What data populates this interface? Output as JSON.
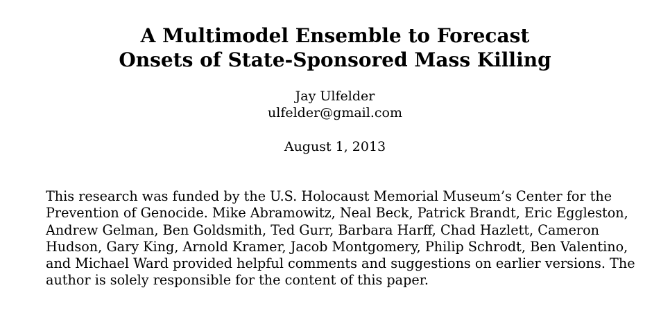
{
  "paper": {
    "title_lines": [
      "A Multimodel Ensemble to Forecast",
      "Onsets of State-Sponsored Mass Killing"
    ],
    "author": "Jay Ulfelder",
    "email": "ulfelder@gmail.com",
    "date": "August 1, 2013",
    "acknowledgment_lines": [
      "This research was funded by the U.S. Holocaust Memorial Museum’s Center for the",
      "Prevention of Genocide. Mike Abramowitz, Neal Beck, Patrick Brandt, Eric Eggleston,",
      "Andrew Gelman, Ben Goldsmith, Ted Gurr, Barbara Harff, Chad Hazlett, Cameron",
      "Hudson, Gary King, Arnold Kramer, Jacob Montgomery, Philip Schrodt, Ben Valentino,",
      "and Michael Ward provided helpful comments and suggestions on earlier versions. The",
      "author is solely responsible for the content of this paper."
    ]
  }
}
